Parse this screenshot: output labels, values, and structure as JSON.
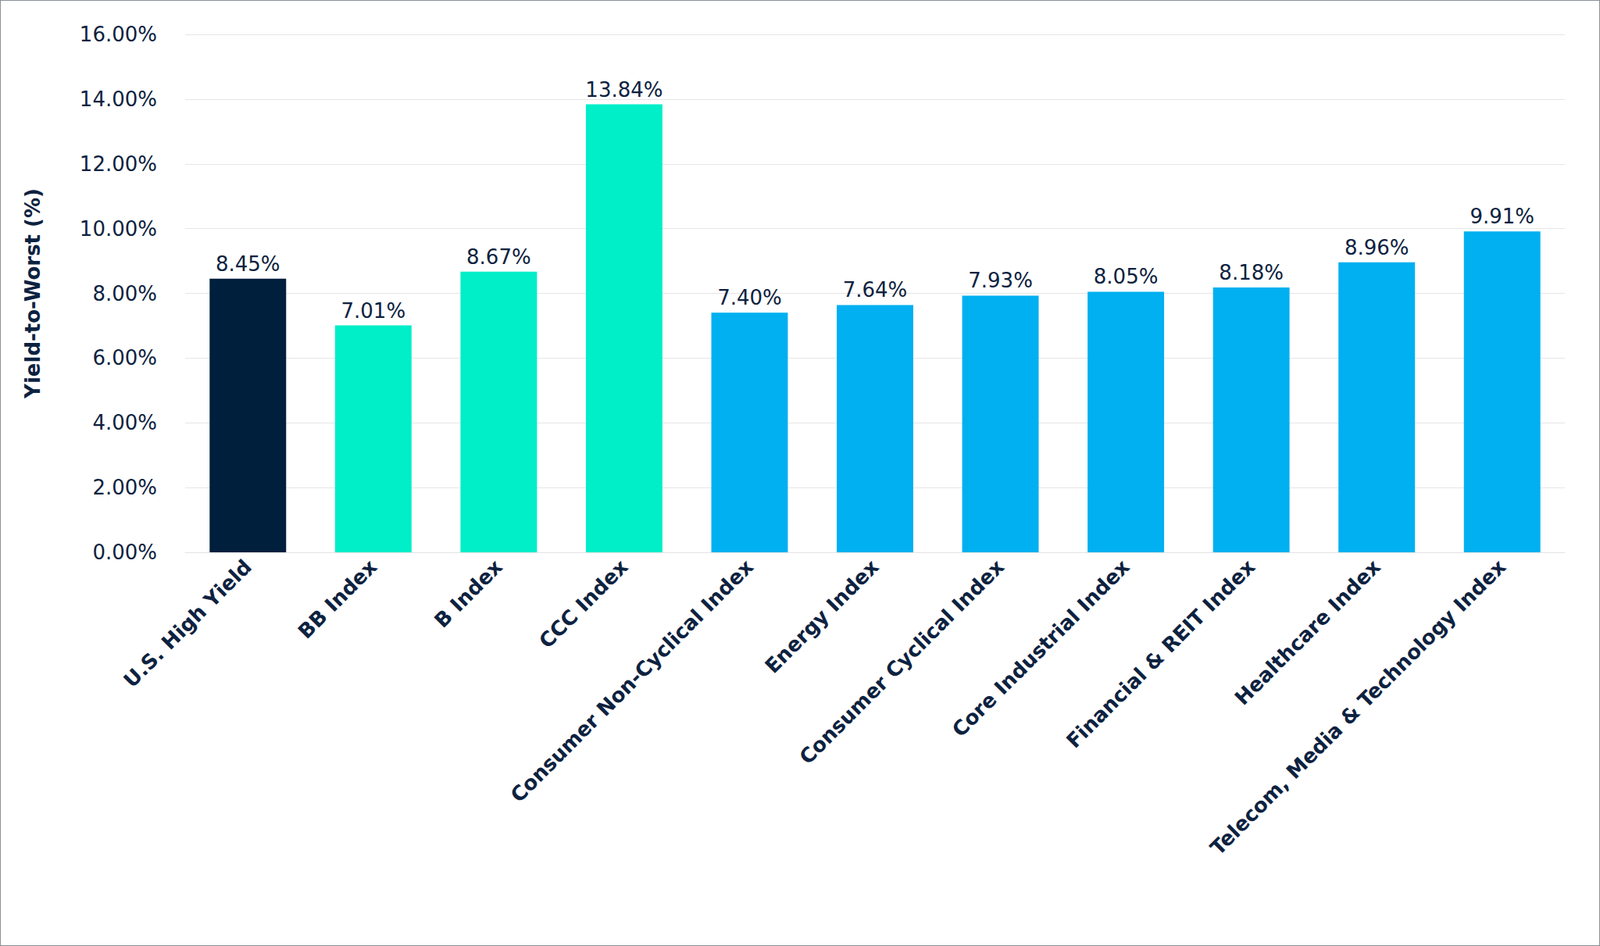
{
  "chart_data": {
    "type": "bar",
    "y_label": "Yield-to-Worst (%)",
    "categories": [
      "U.S. High Yield",
      "BB Index",
      "B Index",
      "CCC Index",
      "Consumer Non-Cyclical Index",
      "Energy Index",
      "Consumer Cyclical Index",
      "Core Industrial Index",
      "Financial & REIT Index",
      "Healthcare Index",
      "Telecom, Media & Technology Index"
    ],
    "values": [
      8.45,
      7.01,
      8.67,
      13.84,
      7.4,
      7.64,
      7.93,
      8.05,
      8.18,
      8.96,
      9.91
    ],
    "value_labels": [
      "8.45%",
      "7.01%",
      "8.67%",
      "13.84%",
      "7.40%",
      "7.64%",
      "7.93%",
      "8.05%",
      "8.18%",
      "8.96%",
      "9.91%"
    ],
    "colors": [
      "#001f3d",
      "#00eec8",
      "#00eec8",
      "#00eec8",
      "#00b0f0",
      "#00b0f0",
      "#00b0f0",
      "#00b0f0",
      "#00b0f0",
      "#00b0f0",
      "#00b0f0"
    ],
    "ylim": [
      0,
      16
    ],
    "yticks": [
      {
        "value": 0,
        "label": "0.00%"
      },
      {
        "value": 2,
        "label": "2.00%"
      },
      {
        "value": 4,
        "label": "4.00%"
      },
      {
        "value": 6,
        "label": "6.00%"
      },
      {
        "value": 8,
        "label": "8.00%"
      },
      {
        "value": 10,
        "label": "10.00%"
      },
      {
        "value": 12,
        "label": "12.00%"
      },
      {
        "value": 14,
        "label": "14.00%"
      },
      {
        "value": 16,
        "label": "16.00%"
      }
    ],
    "grid": true,
    "data_labels": true
  }
}
